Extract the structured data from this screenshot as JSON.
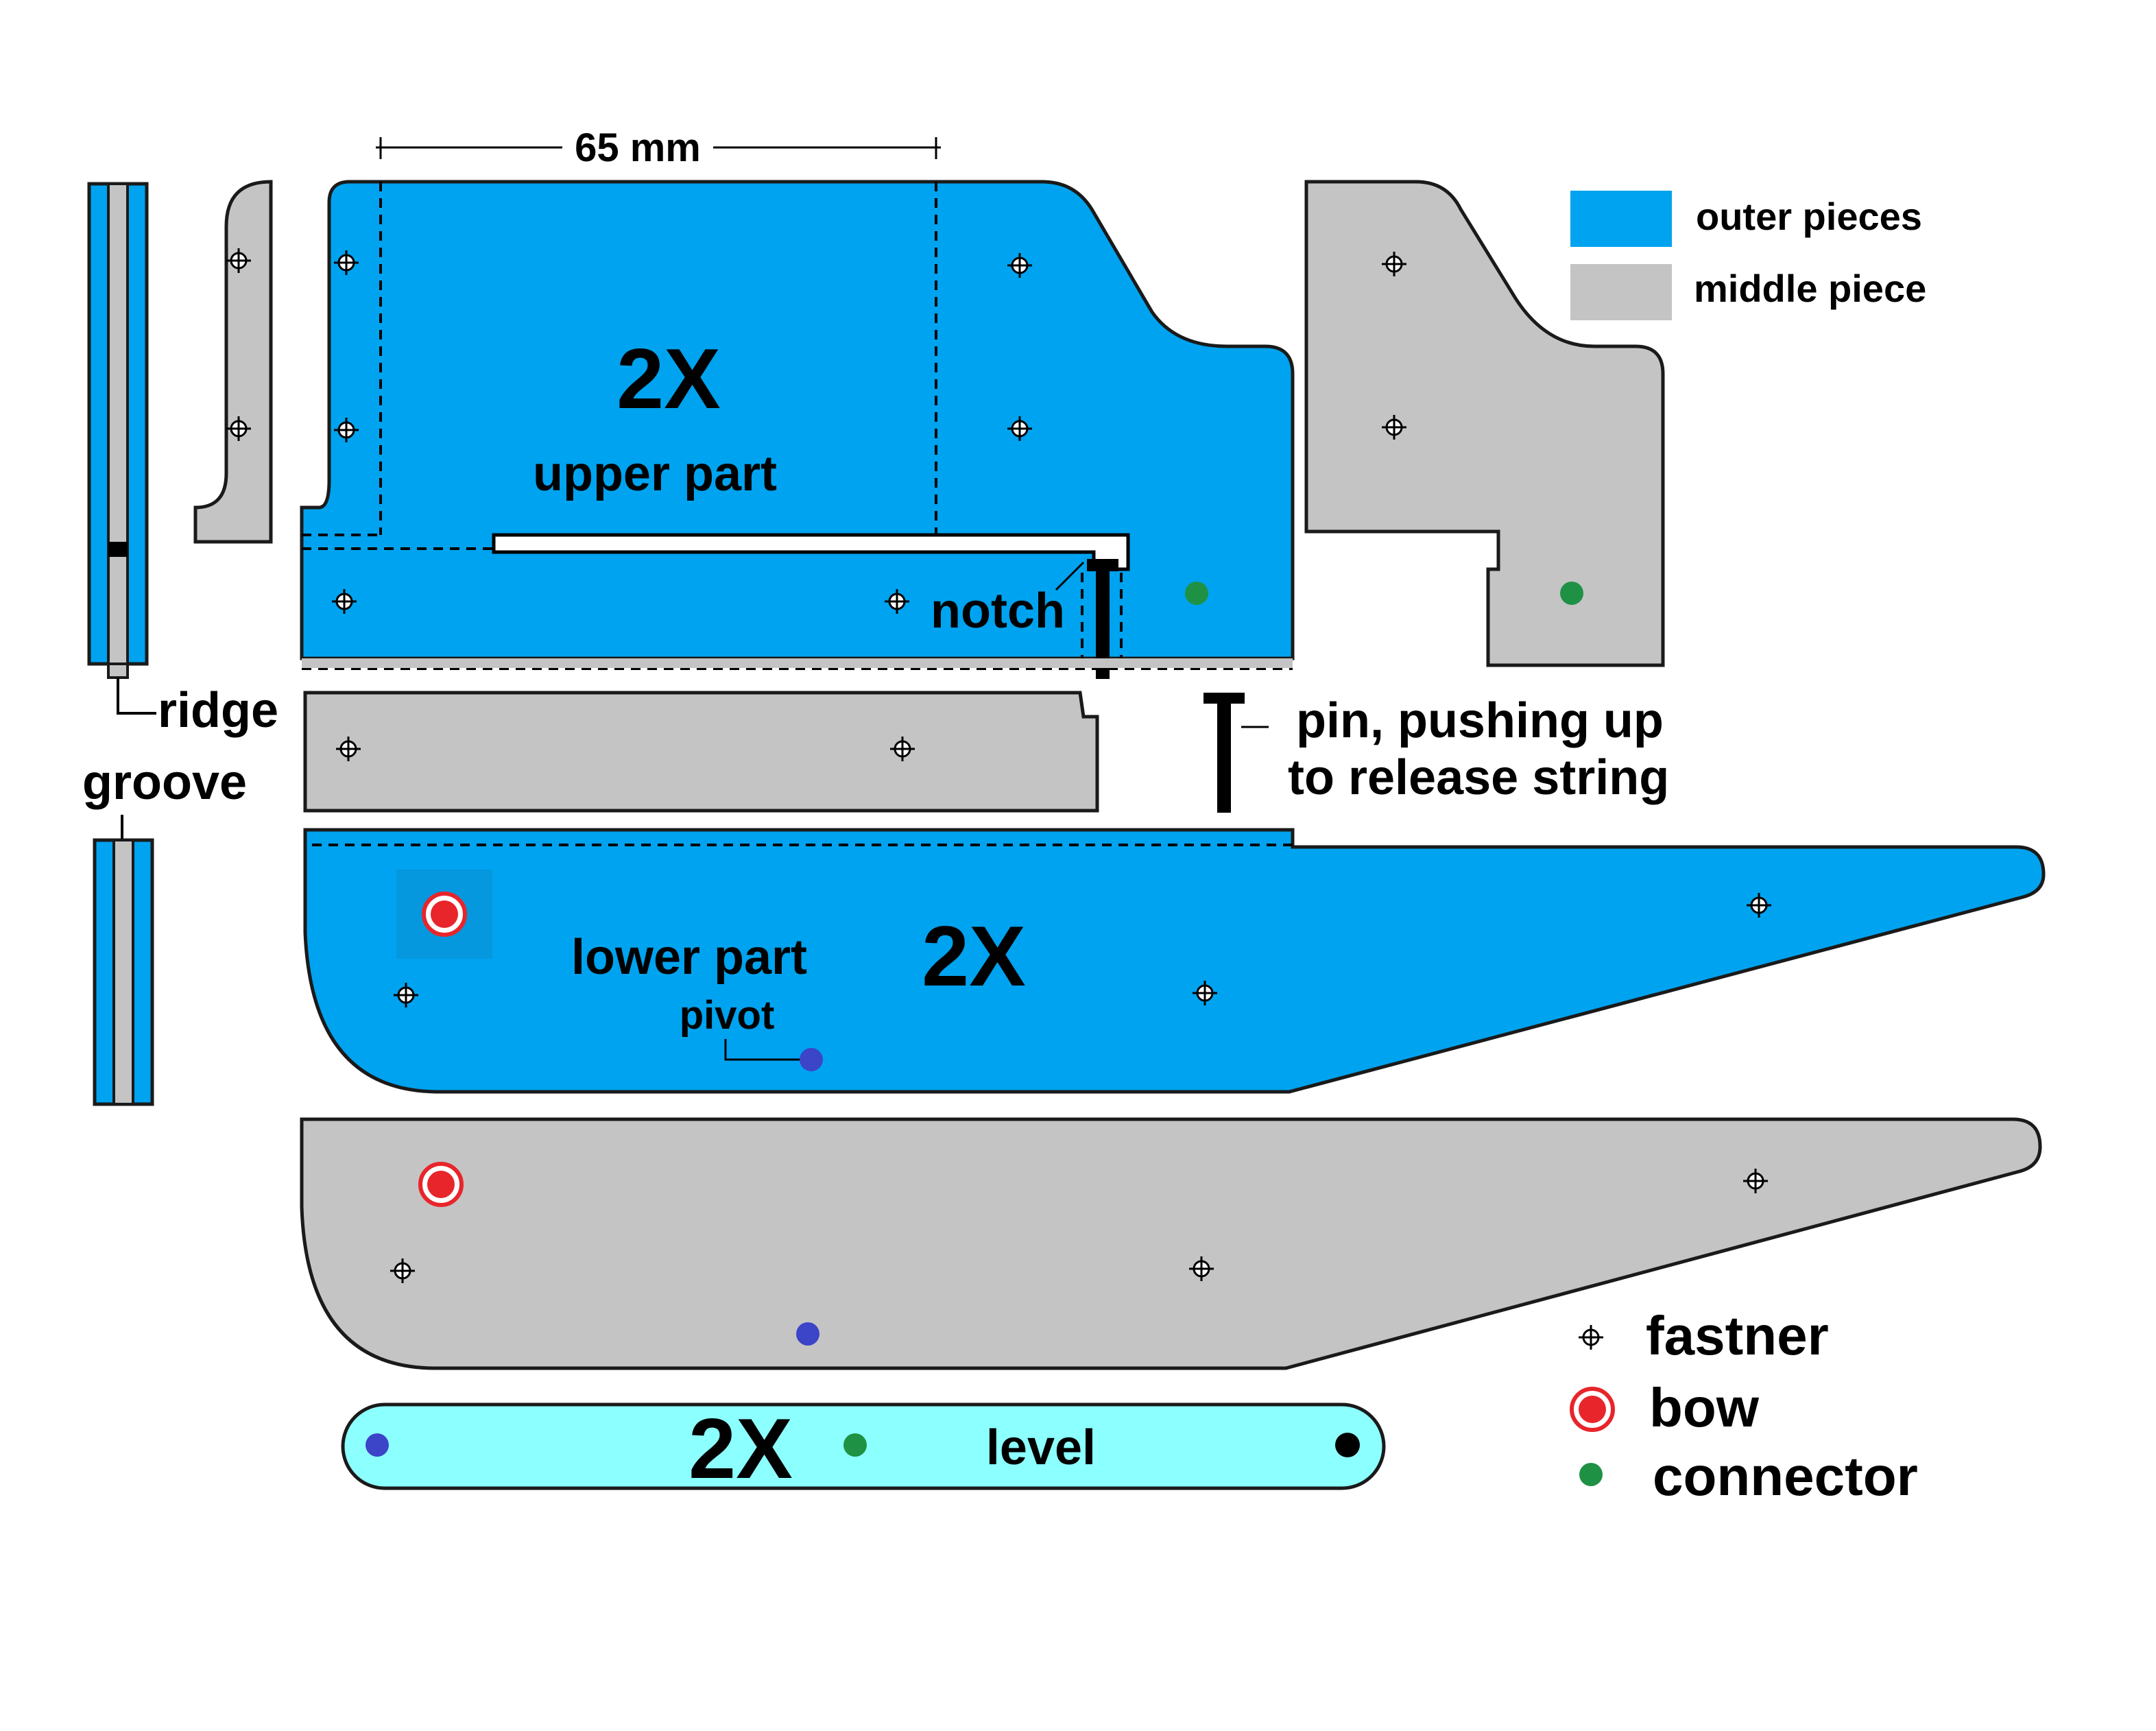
{
  "colors": {
    "outer": "#00a3ef",
    "middle": "#c4c4c4",
    "level": "#8cffff",
    "bow": "#e8252b",
    "connector": "#1f9144",
    "pivot": "#3c44c8"
  },
  "labels": {
    "dimension": "65 mm",
    "upper_multiplier": "2X",
    "upper_part": "upper part",
    "notch": "notch",
    "ridge": "ridge",
    "groove": "groove",
    "pin_line1": "pin, pushing up",
    "pin_line2": "to release string",
    "lower_part": "lower part",
    "lower_multiplier": "2X",
    "pivot": "pivot",
    "level_multiplier": "2X",
    "level": "level"
  },
  "legend": {
    "outer_pieces": "outer pieces",
    "middle_piece": "middle piece",
    "fastner": "fastner",
    "bow": "bow",
    "connector": "connector"
  },
  "icons": [
    "fastener-icon",
    "bow-icon",
    "connector-icon",
    "pivot-icon"
  ]
}
